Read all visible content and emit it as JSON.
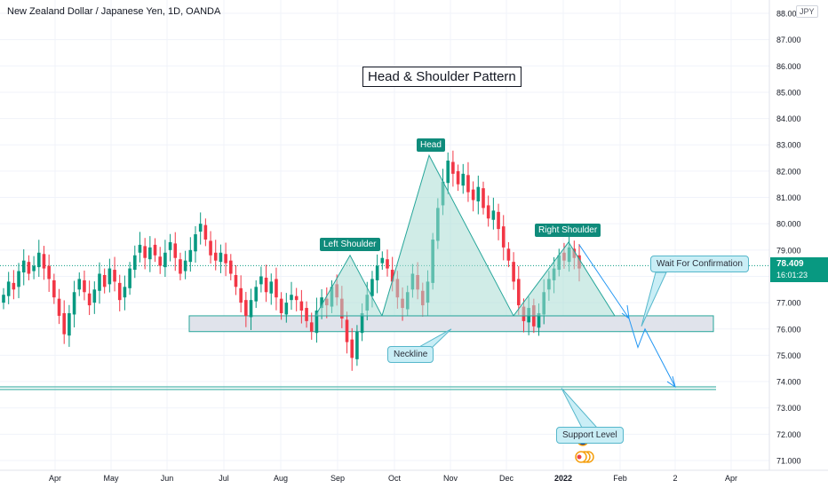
{
  "header": {
    "title": "New Zealand Dollar / Japanese Yen, 1D, OANDA",
    "currency_badge": "JPY"
  },
  "price_tag": {
    "price": "78.409",
    "countdown": "16:01:23"
  },
  "annotations": {
    "pattern_title": "Head & Shoulder Pattern",
    "head": "Head",
    "left_shoulder": "Left Shoulder",
    "right_shoulder": "Right Shoulder",
    "neckline": "Neckline",
    "wait": "Wait For Confirmation",
    "support": "Support Level"
  },
  "colors": {
    "up": "#089981",
    "down": "#f23645",
    "pattern_fill": "#a9dcd3",
    "pattern_line": "#26a69a",
    "zone_fill": "#e0e3eb",
    "projection": "#2196f3",
    "callout": "#c9eef6"
  },
  "chart_data": {
    "type": "candlestick",
    "x_ticks": [
      "Apr",
      "May",
      "Jun",
      "Jul",
      "Aug",
      "Sep",
      "Oct",
      "Nov",
      "Dec",
      "2022",
      "Feb",
      "2",
      "Apr"
    ],
    "y_ticks": [
      "88.000",
      "87.000",
      "86.000",
      "85.000",
      "84.000",
      "83.000",
      "82.000",
      "81.000",
      "80.000",
      "79.000",
      "78.000",
      "77.000",
      "76.000",
      "75.000",
      "74.000",
      "73.000",
      "72.000",
      "71.000"
    ],
    "ylim": [
      70.7,
      88.3
    ],
    "last_price": 78.409,
    "closes": [
      77.3,
      77.8,
      77.5,
      78.2,
      78.6,
      78.1,
      78.4,
      78.9,
      78.3,
      77.9,
      77.2,
      76.5,
      75.8,
      76.6,
      77.4,
      77.9,
      77.4,
      76.9,
      77.5,
      78.1,
      77.6,
      78.3,
      77.8,
      77.1,
      77.6,
      78.3,
      78.8,
      79.2,
      78.7,
      79.1,
      78.8,
      78.4,
      78.9,
      79.3,
      78.7,
      78.1,
      78.6,
      79.0,
      79.6,
      80.0,
      79.4,
      78.8,
      78.6,
      78.9,
      78.5,
      78.1,
      77.6,
      77.0,
      76.5,
      77.1,
      77.6,
      78.0,
      77.4,
      77.8,
      77.2,
      76.6,
      77.0,
      77.3,
      77.1,
      76.7,
      76.3,
      75.9,
      76.7,
      77.2,
      76.9,
      77.6,
      77.2,
      76.4,
      75.5,
      74.9,
      75.9,
      76.6,
      77.3,
      77.9,
      78.4,
      78.7,
      78.3,
      77.8,
      77.2,
      76.8,
      77.4,
      78.1,
      77.5,
      76.9,
      77.8,
      79.4,
      80.6,
      81.6,
      82.4,
      81.9,
      81.5,
      81.9,
      81.2,
      80.9,
      81.4,
      80.6,
      80.2,
      80.5,
      79.8,
      79.1,
      78.6,
      77.8,
      76.9,
      76.3,
      76.8,
      76.1,
      76.6,
      77.4,
      77.9,
      78.3,
      78.8,
      78.6,
      79.1,
      78.7,
      78.3
    ],
    "series": [
      {
        "name": "",
        "note": "close series above; bodies/wicks derived"
      }
    ],
    "patterns": {
      "left_shoulder_peak": 78.8,
      "head_peak": 82.6,
      "right_shoulder_peak": 79.3,
      "neckline_zone": [
        75.9,
        76.5
      ],
      "support_level": 73.75,
      "projection": [
        78.4,
        76.4,
        75.3,
        76.0,
        73.8
      ]
    }
  }
}
